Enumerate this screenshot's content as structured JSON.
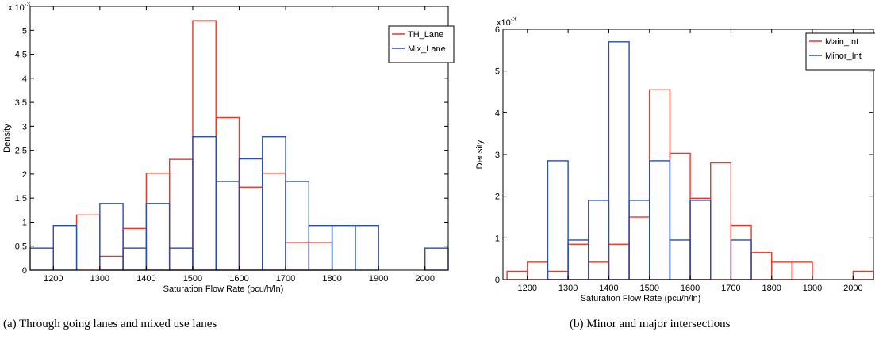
{
  "chart_data": [
    {
      "type": "histogram",
      "caption": "(a) Through going lanes and mixed use lanes",
      "x_label": "Saturation Flow Rate (pcu/h/ln)",
      "y_label": "Density",
      "y_scale_base": "x 10",
      "y_scale_exponent": "-3",
      "bins": [
        1150,
        1200,
        1250,
        1300,
        1350,
        1400,
        1450,
        1500,
        1550,
        1600,
        1650,
        1700,
        1750,
        1800,
        1850,
        1900,
        1950,
        2000,
        2050
      ],
      "series": [
        {
          "name": "TH_Lane",
          "color": "#e8392a",
          "values": [
            0,
            0,
            1.15,
            0.29,
            0.87,
            2.02,
            2.31,
            5.2,
            3.18,
            1.73,
            2.02,
            0.58,
            0.58,
            0,
            0,
            0,
            0,
            0
          ]
        },
        {
          "name": "Mix_Lane",
          "color": "#2a4fa8",
          "values": [
            0.46,
            0.93,
            0,
            1.39,
            0.46,
            1.39,
            0.46,
            2.78,
            1.85,
            2.32,
            2.78,
            1.85,
            0.93,
            0.93,
            0.93,
            0,
            0,
            0.46
          ]
        }
      ],
      "xlim": [
        1150,
        2050
      ],
      "xticks": [
        1200,
        1300,
        1400,
        1500,
        1600,
        1700,
        1800,
        1900,
        2000
      ],
      "ylim": [
        0,
        5.5
      ],
      "yticks": [
        0,
        0.5,
        1,
        1.5,
        2,
        2.5,
        3,
        3.5,
        4,
        4.5,
        5
      ],
      "legend": "upper right"
    },
    {
      "type": "histogram",
      "caption": "(b)  Minor and major intersections",
      "x_label": "Saturation Flow Rate (pcu/h/ln)",
      "y_label": "Density",
      "y_scale_base": "x10",
      "y_scale_exponent": "-3",
      "bins": [
        1150,
        1200,
        1250,
        1300,
        1350,
        1400,
        1450,
        1500,
        1550,
        1600,
        1650,
        1700,
        1750,
        1800,
        1850,
        1900,
        1950,
        2000,
        2050
      ],
      "series": [
        {
          "name": "Main_Int",
          "color": "#e8392a",
          "values": [
            0.2,
            0.42,
            0.2,
            0.85,
            0.42,
            0.85,
            1.5,
            4.55,
            3.03,
            1.95,
            2.8,
            1.3,
            0.65,
            0.42,
            0.42,
            0,
            0,
            0.2
          ]
        },
        {
          "name": "Minor_Int",
          "color": "#2a4fa8",
          "values": [
            0,
            0,
            2.85,
            0.95,
            1.9,
            5.7,
            1.9,
            2.85,
            0.95,
            1.9,
            0,
            0.95,
            0,
            0,
            0,
            0,
            0,
            0
          ]
        }
      ],
      "xlim": [
        1140,
        2050
      ],
      "xticks": [
        1200,
        1300,
        1400,
        1500,
        1600,
        1700,
        1800,
        1900,
        2000
      ],
      "ylim": [
        0,
        6
      ],
      "yticks": [
        0,
        1,
        2,
        3,
        4,
        5,
        6
      ],
      "legend": "upper right"
    }
  ]
}
